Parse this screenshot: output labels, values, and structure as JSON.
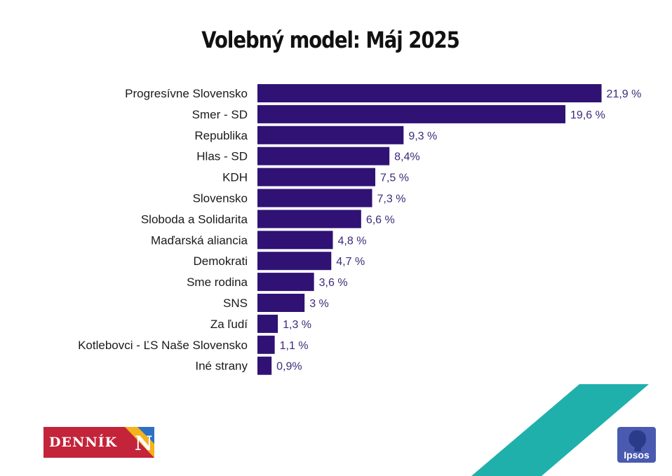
{
  "chart_data": {
    "type": "bar",
    "orientation": "horizontal",
    "title": "Volebný model: Máj 2025",
    "categories": [
      "Progresívne Slovensko",
      "Smer - SD",
      "Republika",
      "Hlas - SD",
      "KDH",
      "Slovensko",
      "Sloboda a Solidarita",
      "Maďarská aliancia",
      "Demokrati",
      "Sme rodina",
      "SNS",
      "Za ľudí",
      "Kotlebovci - ĽS Naše Slovensko",
      "Iné strany"
    ],
    "values": [
      21.9,
      19.6,
      9.3,
      8.4,
      7.5,
      7.3,
      6.6,
      4.8,
      4.7,
      3.6,
      3,
      1.3,
      1.1,
      0.9
    ],
    "value_labels": [
      "21,9 %",
      "19,6 %",
      "9,3 %",
      "8,4%",
      "7,5 %",
      "7,3 %",
      "6,6 %",
      "4,8 %",
      "4,7 %",
      "3,6 %",
      "3 %",
      "1,3 %",
      "1,1 %",
      "0,9%"
    ],
    "bar_color": "#301274",
    "label_color": "#3d2a7a",
    "xlabel": "",
    "ylabel": "",
    "grid": false,
    "legend": "none"
  },
  "logos": {
    "left": {
      "text": "DENNÍK",
      "mark": "N",
      "bg_color": "#c3243a"
    },
    "right": {
      "text": "Ipsos",
      "bg_color": "#4a5ab0"
    }
  },
  "decoration": {
    "accent_color": "#1fb0ac"
  }
}
